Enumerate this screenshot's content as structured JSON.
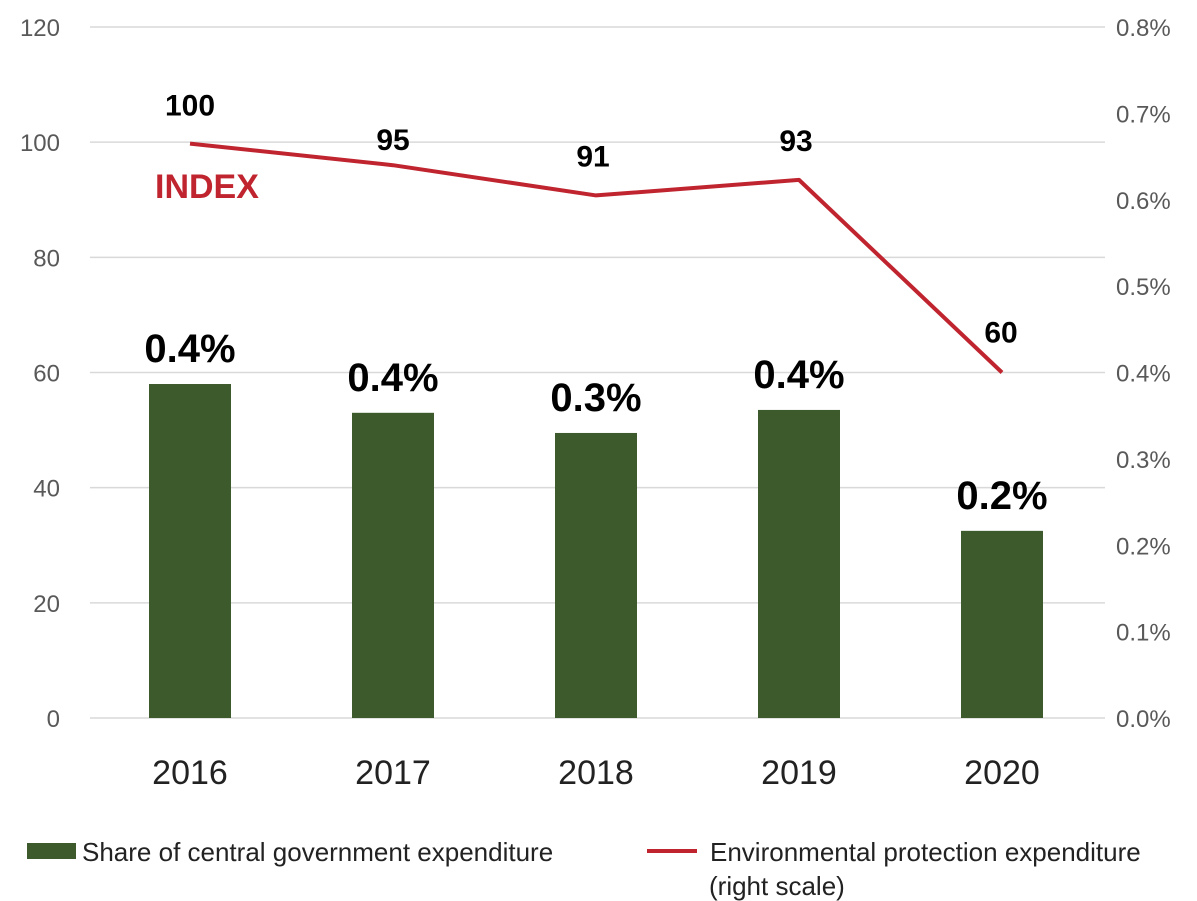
{
  "chart_data": {
    "type": "bar",
    "categories": [
      "2016",
      "2017",
      "2018",
      "2019",
      "2020"
    ],
    "series": [
      {
        "name": "Share of central government expenditure",
        "type": "bar",
        "axis": "left",
        "values": [
          58,
          53,
          49.5,
          53.5,
          32.5
        ],
        "labels": [
          "0.4%",
          "0.4%",
          "0.3%",
          "0.4%",
          "0.2%"
        ],
        "color": "#3d5a2c"
      },
      {
        "name": "Environmental protection expenditure",
        "name_line2": "(right scale)",
        "type": "line",
        "axis": "right",
        "values": [
          100,
          95,
          91,
          93,
          60
        ],
        "value_positions": [
          0.00665,
          0.0064,
          0.00605,
          0.00623,
          0.004
        ],
        "labels": [
          "100",
          "95",
          "91",
          "93",
          "60"
        ],
        "color": "#c0252f"
      }
    ],
    "annotation": "INDEX",
    "y_left": {
      "min": 0,
      "max": 120,
      "ticks": [
        "0",
        "20",
        "40",
        "60",
        "80",
        "100",
        "120"
      ]
    },
    "y_right": {
      "min": 0,
      "max": 0.008,
      "ticks": [
        "0.0%",
        "0.1%",
        "0.2%",
        "0.3%",
        "0.4%",
        "0.5%",
        "0.6%",
        "0.7%",
        "0.8%"
      ]
    },
    "grid": true,
    "legend": "bottom"
  },
  "colors": {
    "bar": "#3d5a2c",
    "line": "#c0252f",
    "grid": "#d9d9d9"
  }
}
